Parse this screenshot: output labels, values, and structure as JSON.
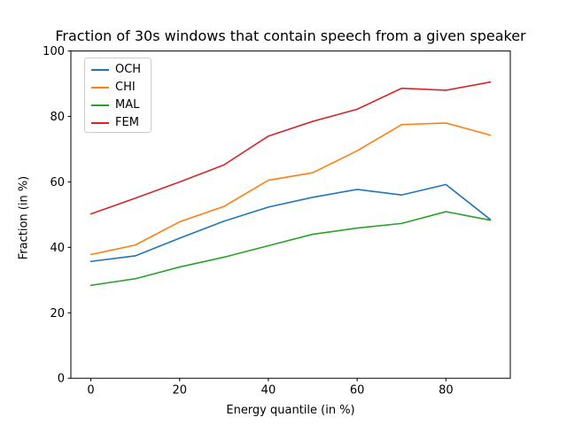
{
  "chart_data": {
    "type": "line",
    "title": "Fraction of 30s windows that contain speech from a given speaker",
    "xlabel": "Energy quantile (in %)",
    "ylabel": "Fraction (in %)",
    "x": [
      0,
      10,
      20,
      30,
      40,
      50,
      60,
      70,
      80,
      90
    ],
    "xlim": [
      -4.5,
      94.5
    ],
    "ylim": [
      0,
      100
    ],
    "xticks": [
      0,
      20,
      40,
      60,
      80
    ],
    "yticks": [
      0,
      20,
      40,
      60,
      80,
      100
    ],
    "grid": false,
    "legend_position": "upper left",
    "axis_color": "#000000",
    "series": [
      {
        "name": "OCH",
        "color": "#1f77b4",
        "values": [
          35.7,
          37.4,
          42.8,
          48.0,
          52.3,
          55.3,
          57.7,
          56.0,
          59.2,
          48.5
        ]
      },
      {
        "name": "CHI",
        "color": "#ff7f0e",
        "values": [
          37.8,
          40.7,
          47.8,
          52.5,
          60.5,
          62.8,
          69.5,
          77.5,
          78.0,
          74.3
        ]
      },
      {
        "name": "MAL",
        "color": "#2ca02c",
        "values": [
          28.4,
          30.4,
          34.0,
          37.0,
          40.5,
          44.0,
          45.9,
          47.3,
          50.9,
          48.3
        ]
      },
      {
        "name": "FEM",
        "color": "#d62728",
        "values": [
          50.2,
          55.0,
          60.0,
          65.2,
          74.0,
          78.5,
          82.2,
          88.6,
          88.0,
          90.5
        ]
      }
    ]
  }
}
